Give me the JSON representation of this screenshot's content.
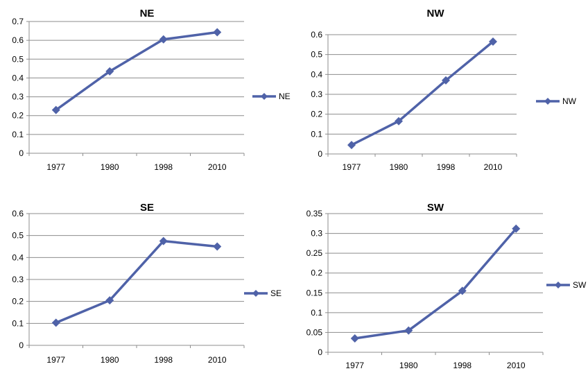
{
  "chart_data": [
    {
      "type": "line",
      "title": "NE",
      "categories": [
        "1977",
        "1980",
        "1998",
        "2010"
      ],
      "series": [
        {
          "name": "NE",
          "values": [
            0.23,
            0.435,
            0.605,
            0.643
          ]
        }
      ],
      "ylim": [
        0,
        0.7
      ],
      "yticks": [
        "0",
        "0.1",
        "0.2",
        "0.3",
        "0.4",
        "0.5",
        "0.6",
        "0.7"
      ],
      "grid": true,
      "legend": "right"
    },
    {
      "type": "line",
      "title": "NW",
      "categories": [
        "1977",
        "1980",
        "1998",
        "2010"
      ],
      "series": [
        {
          "name": "NW",
          "values": [
            0.045,
            0.165,
            0.37,
            0.565
          ]
        }
      ],
      "ylim": [
        0,
        0.6
      ],
      "yticks": [
        "0",
        "0.1",
        "0.2",
        "0.3",
        "0.4",
        "0.5",
        "0.6"
      ],
      "grid": true,
      "legend": "right"
    },
    {
      "type": "line",
      "title": "SE",
      "categories": [
        "1977",
        "1980",
        "1998",
        "2010"
      ],
      "series": [
        {
          "name": "SE",
          "values": [
            0.103,
            0.205,
            0.475,
            0.45
          ]
        }
      ],
      "ylim": [
        0,
        0.6
      ],
      "yticks": [
        "0",
        "0.1",
        "0.2",
        "0.3",
        "0.4",
        "0.5",
        "0.6"
      ],
      "grid": true,
      "legend": "right"
    },
    {
      "type": "line",
      "title": "SW",
      "categories": [
        "1977",
        "1980",
        "1998",
        "2010"
      ],
      "series": [
        {
          "name": "SW",
          "values": [
            0.035,
            0.055,
            0.155,
            0.312
          ]
        }
      ],
      "ylim": [
        0,
        0.35
      ],
      "yticks": [
        "0",
        "0.05",
        "0.1",
        "0.15",
        "0.2",
        "0.25",
        "0.3",
        "0.35"
      ],
      "grid": true,
      "legend": "right"
    }
  ],
  "colors": {
    "series": "#4f62a8",
    "grid": "#8c8c8c"
  }
}
